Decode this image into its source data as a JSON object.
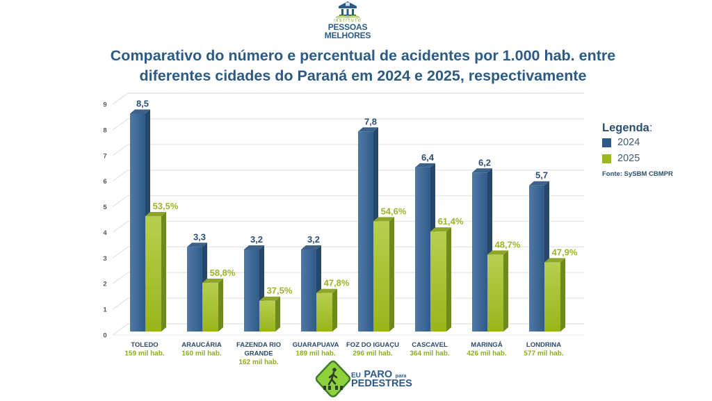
{
  "header": {
    "logo": {
      "small_line": "INSTITUTO",
      "line1": "PESSOAS",
      "line2": "MELHORES"
    }
  },
  "chart_data": {
    "type": "bar",
    "title": [
      "Comparativo do número e percentual de acidentes por 1.000 hab. entre",
      "diferentes cidades do Paraná em 2024 e 2025, respectivamente"
    ],
    "xlabel": "",
    "ylabel": "",
    "ylim": [
      0,
      9
    ],
    "yticks": [
      0,
      1,
      2,
      3,
      4,
      5,
      6,
      7,
      8,
      9
    ],
    "grid": true,
    "legend_position": "right",
    "legend_title": "Legenda",
    "legend_colon": ":",
    "source": "Fonte: SySBM CBMPR",
    "categories": [
      "TOLEDO",
      "ARAUCÁRIA",
      "FAZENDA RIO GRANDE",
      "GUARAPUAVA",
      "FOZ DO IGUAÇU",
      "CASCAVEL",
      "MARINGÁ",
      "LONDRINA"
    ],
    "category_lines": [
      [
        "TOLEDO"
      ],
      [
        "ARAUCÁRIA"
      ],
      [
        "FAZENDA RIO",
        "GRANDE"
      ],
      [
        "GUARAPUAVA"
      ],
      [
        "FOZ DO IGUAÇU"
      ],
      [
        "CASCAVEL"
      ],
      [
        "MARINGÁ"
      ],
      [
        "LONDRINA"
      ]
    ],
    "population_labels": [
      "159 mil hab.",
      "160 mil hab.",
      "162 mil hab.",
      "189 mil hab.",
      "296 mil hab.",
      "364 mil hab.",
      "426 mil hab.",
      "577 mil hab."
    ],
    "series": [
      {
        "name": "2024",
        "values": [
          8.5,
          3.3,
          3.2,
          3.2,
          7.8,
          6.4,
          6.2,
          5.7
        ],
        "labels": [
          "8,5",
          "3,3",
          "3,2",
          "3,2",
          "7,8",
          "6,4",
          "6,2",
          "5,7"
        ],
        "color": "#2f5c8a",
        "legend_color": "#2c5a8a"
      },
      {
        "name": "2025",
        "values": [
          4.5,
          1.9,
          1.2,
          1.5,
          4.3,
          3.9,
          3.0,
          2.7
        ],
        "labels": [
          "53,5%",
          "58,8%",
          "37,5%",
          "47,8%",
          "54,6%",
          "61,4%",
          "48,7%",
          "47,9%"
        ],
        "color": "#9fbb2a",
        "legend_color": "#9ab71e"
      }
    ]
  },
  "footer_logo": {
    "eu": "EU",
    "paro": "PARO",
    "para": "para",
    "pedestres": "PEDESTRES"
  },
  "colors": {
    "title": "#2b5a84",
    "value_label_2024": "#2c4f73",
    "value_label_2025": "#9ab52a",
    "category_label": "#2c4a6b",
    "population_label": "#8fae1c"
  }
}
